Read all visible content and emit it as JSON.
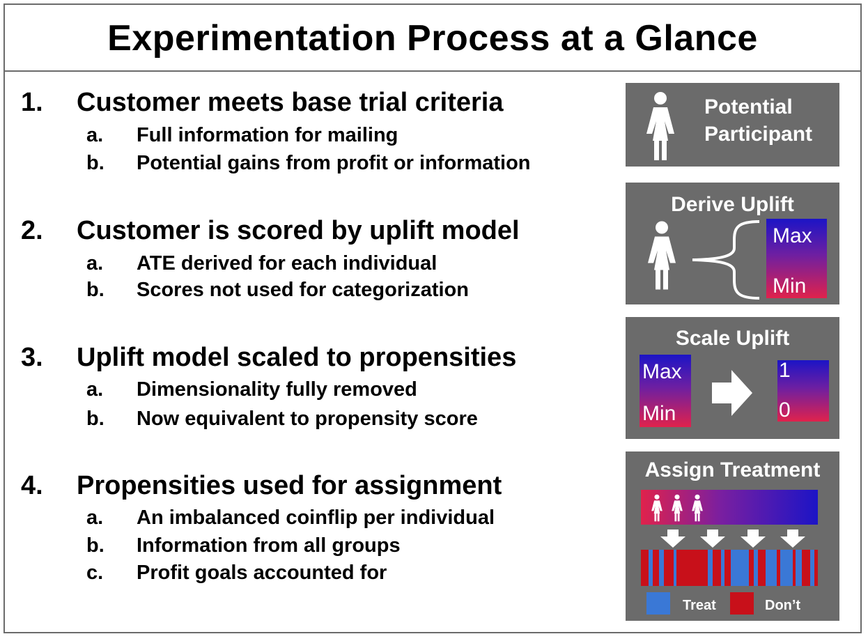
{
  "title": "Experimentation Process at a Glance",
  "steps": [
    {
      "number": "1.",
      "text": "Customer meets base trial criteria",
      "subs": [
        {
          "letter": "a.",
          "text": "Full information for mailing"
        },
        {
          "letter": "b.",
          "text": "Potential gains from profit or information"
        }
      ]
    },
    {
      "number": "2.",
      "text": "Customer is scored by uplift model",
      "subs": [
        {
          "letter": "a.",
          "text": "ATE derived for each individual"
        },
        {
          "letter": "b.",
          "text": "Scores not used for categorization"
        }
      ]
    },
    {
      "number": "3.",
      "text": "Uplift model scaled to propensities",
      "subs": [
        {
          "letter": "a.",
          "text": "Dimensionality fully removed"
        },
        {
          "letter": "b.",
          "text": "Now equivalent to propensity score"
        }
      ]
    },
    {
      "number": "4.",
      "text": "Propensities used for assignment",
      "subs": [
        {
          "letter": "a.",
          "text": "An imbalanced coinflip per individual"
        },
        {
          "letter": "b.",
          "text": "Information from all groups"
        },
        {
          "letter": "c.",
          "text": "Profit goals accounted for"
        }
      ]
    }
  ],
  "panels": {
    "participant": {
      "line1": "Potential",
      "line2": "Participant"
    },
    "derive": {
      "title": "Derive Uplift",
      "max": "Max",
      "min": "Min"
    },
    "scale": {
      "title": "Scale Uplift",
      "max": "Max",
      "min": "Min",
      "one": "1",
      "zero": "0"
    },
    "assign": {
      "title": "Assign Treatment",
      "treat": "Treat",
      "dont": "Don’t"
    }
  },
  "colors": {
    "panel_bg": "#6b6b6b",
    "gradient_top": "#1c14c6",
    "gradient_bottom": "#e0224c",
    "treat": "#3a78d6",
    "dont": "#c8101a"
  },
  "assignment_bars": [
    "D",
    "T",
    "D",
    "T",
    "D",
    "T",
    "D",
    "D",
    "D",
    "T",
    "D",
    "T",
    "D",
    "T",
    "T",
    "D",
    "T",
    "D",
    "T",
    "D",
    "T",
    "T",
    "D",
    "T",
    "D",
    "T",
    "D"
  ]
}
